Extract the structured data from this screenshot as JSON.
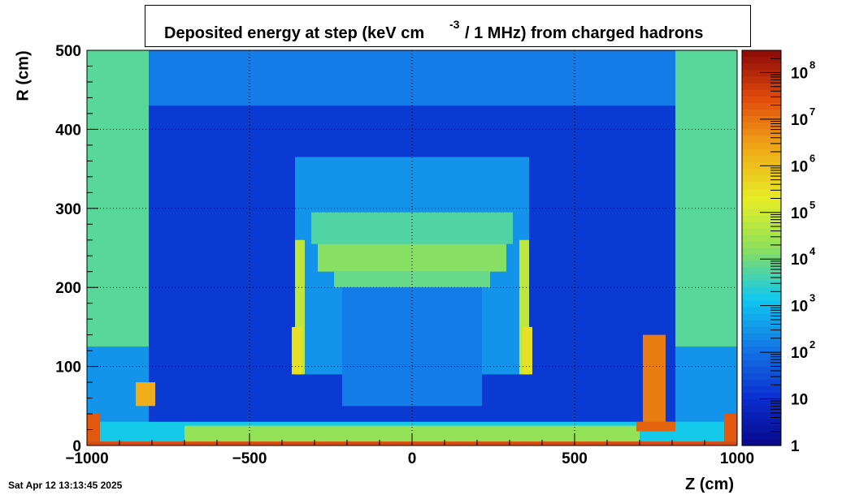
{
  "chart_data": {
    "type": "heatmap",
    "title": {
      "part1": "Deposited energy at step (keV cm",
      "exponent": "-3",
      "part2": "/ 1 MHz)  from   charged hadrons"
    },
    "xlabel": "Z (cm)",
    "ylabel": "R (cm)",
    "xlim": [
      -1000,
      1000
    ],
    "ylim": [
      0,
      500
    ],
    "x_ticks": [
      {
        "value": -1000,
        "label": "−1000"
      },
      {
        "value": -500,
        "label": "−500"
      },
      {
        "value": 0,
        "label": "0"
      },
      {
        "value": 500,
        "label": "500"
      },
      {
        "value": 1000,
        "label": "1000"
      }
    ],
    "y_ticks": [
      {
        "value": 0,
        "label": "0"
      },
      {
        "value": 100,
        "label": "100"
      },
      {
        "value": 200,
        "label": "200"
      },
      {
        "value": 300,
        "label": "300"
      },
      {
        "value": 400,
        "label": "400"
      },
      {
        "value": 500,
        "label": "500"
      }
    ],
    "grid": true,
    "colorbar": {
      "scale": "log",
      "range": [
        1,
        300000000
      ],
      "ticks": [
        {
          "value": 1,
          "base": "1",
          "exp": ""
        },
        {
          "value": 10,
          "base": "10",
          "exp": ""
        },
        {
          "value": 100,
          "base": "10",
          "exp": "2"
        },
        {
          "value": 1000,
          "base": "10",
          "exp": "3"
        },
        {
          "value": 10000,
          "base": "10",
          "exp": "4"
        },
        {
          "value": 100000,
          "base": "10",
          "exp": "5"
        },
        {
          "value": 1000000,
          "base": "10",
          "exp": "6"
        },
        {
          "value": 10000000,
          "base": "10",
          "exp": "7"
        },
        {
          "value": 100000000,
          "base": "10",
          "exp": "8"
        }
      ]
    },
    "regions": [
      {
        "z": [
          -1000,
          1000
        ],
        "r": [
          0,
          500
        ],
        "value": 60
      },
      {
        "z": [
          -810,
          810
        ],
        "r": [
          390,
          500
        ],
        "value": 150
      },
      {
        "z": [
          -810,
          810
        ],
        "r": [
          0,
          430
        ],
        "value": 15
      },
      {
        "z": [
          -1000,
          -810
        ],
        "r": [
          125,
          500
        ],
        "value": 6000
      },
      {
        "z": [
          810,
          1000
        ],
        "r": [
          125,
          500
        ],
        "value": 6000
      },
      {
        "z": [
          -1000,
          -810
        ],
        "r": [
          0,
          125
        ],
        "value": 300
      },
      {
        "z": [
          810,
          1000
        ],
        "r": [
          0,
          125
        ],
        "value": 300
      },
      {
        "z": [
          -360,
          360
        ],
        "r": [
          90,
          365
        ],
        "value": 300
      },
      {
        "z": [
          -310,
          310
        ],
        "r": [
          255,
          295
        ],
        "value": 5000
      },
      {
        "z": [
          -290,
          290
        ],
        "r": [
          220,
          255
        ],
        "value": 15000
      },
      {
        "z": [
          -240,
          240
        ],
        "r": [
          200,
          220
        ],
        "value": 8000
      },
      {
        "z": [
          -215,
          215
        ],
        "r": [
          50,
          200
        ],
        "value": 150
      },
      {
        "z": [
          -360,
          -330
        ],
        "r": [
          90,
          260
        ],
        "value": 60000
      },
      {
        "z": [
          330,
          360
        ],
        "r": [
          90,
          260
        ],
        "value": 60000
      },
      {
        "z": [
          -370,
          -340
        ],
        "r": [
          90,
          150
        ],
        "value": 300000
      },
      {
        "z": [
          340,
          370
        ],
        "r": [
          90,
          150
        ],
        "value": 300000
      },
      {
        "z": [
          -1000,
          1000
        ],
        "r": [
          0,
          30
        ],
        "value": 1500
      },
      {
        "z": [
          -700,
          700
        ],
        "r": [
          0,
          25
        ],
        "value": 20000
      },
      {
        "z": [
          -1000,
          -960
        ],
        "r": [
          5,
          40
        ],
        "value": 20000000
      },
      {
        "z": [
          960,
          1000
        ],
        "r": [
          5,
          40
        ],
        "value": 20000000
      },
      {
        "z": [
          -850,
          -790
        ],
        "r": [
          50,
          80
        ],
        "value": 2000000
      },
      {
        "z": [
          710,
          780
        ],
        "r": [
          20,
          140
        ],
        "value": 8000000
      },
      {
        "z": [
          690,
          810
        ],
        "r": [
          18,
          30
        ],
        "value": 15000000
      },
      {
        "z": [
          -1000,
          1000
        ],
        "r": [
          0,
          5
        ],
        "value": 30000000
      }
    ]
  },
  "timestamp": "Sat Apr 12 13:13:45 2025"
}
